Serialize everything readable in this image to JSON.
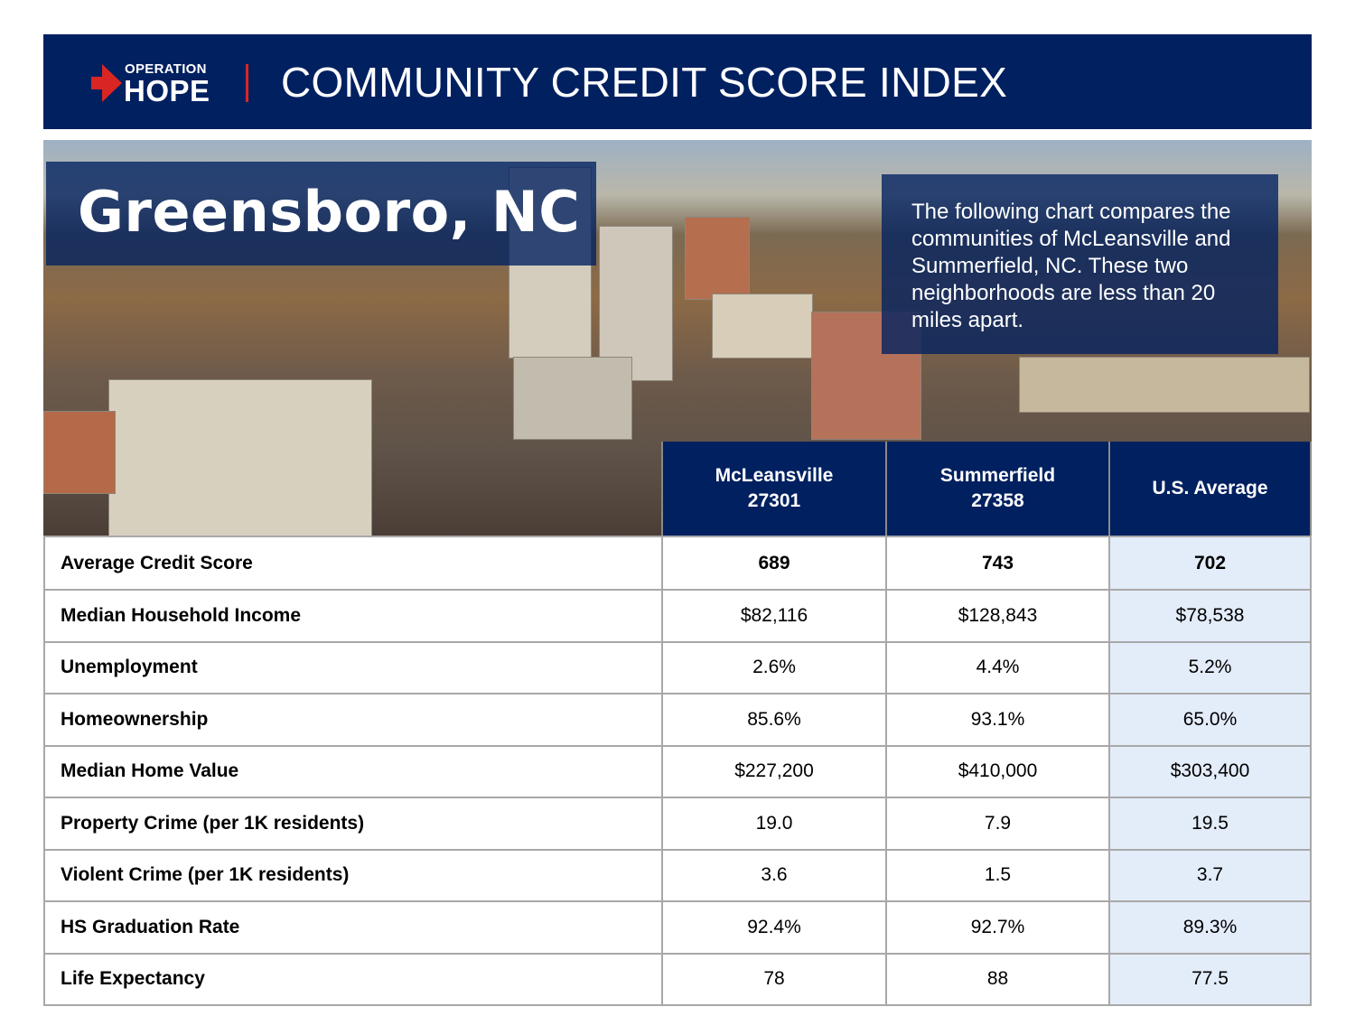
{
  "header": {
    "logo_top": "OPERATION",
    "logo_bottom": "HOPE",
    "title": "COMMUNITY CREDIT SCORE INDEX",
    "accent": "#d92623",
    "navy": "#002060"
  },
  "hero": {
    "city": "Greensboro, NC",
    "description": "The following chart compares the communities of McLeansville and Summerfield, NC. These two neighborhoods are less than 20 miles apart."
  },
  "table": {
    "columns": [
      {
        "name": "McLeansville",
        "zip": "27301"
      },
      {
        "name": "Summerfield",
        "zip": "27358"
      },
      {
        "name": "U.S. Average",
        "zip": ""
      }
    ],
    "rows": [
      {
        "label": "Average Credit Score",
        "values": [
          "689",
          "743",
          "702"
        ]
      },
      {
        "label": "Median Household Income",
        "values": [
          "$82,116",
          "$128,843",
          "$78,538"
        ]
      },
      {
        "label": "Unemployment",
        "values": [
          "2.6%",
          "4.4%",
          "5.2%"
        ]
      },
      {
        "label": "Homeownership",
        "values": [
          "85.6%",
          "93.1%",
          "65.0%"
        ]
      },
      {
        "label": "Median Home Value",
        "values": [
          "$227,200",
          "$410,000",
          "$303,400"
        ]
      },
      {
        "label": "Property Crime (per 1K residents)",
        "values": [
          "19.0",
          "7.9",
          "19.5"
        ]
      },
      {
        "label": "Violent Crime (per 1K residents)",
        "values": [
          "3.6",
          "1.5",
          "3.7"
        ]
      },
      {
        "label": "HS Graduation Rate",
        "values": [
          "92.4%",
          "92.7%",
          "89.3%"
        ]
      },
      {
        "label": "Life Expectancy",
        "values": [
          "78",
          "88",
          "77.5"
        ]
      }
    ]
  }
}
